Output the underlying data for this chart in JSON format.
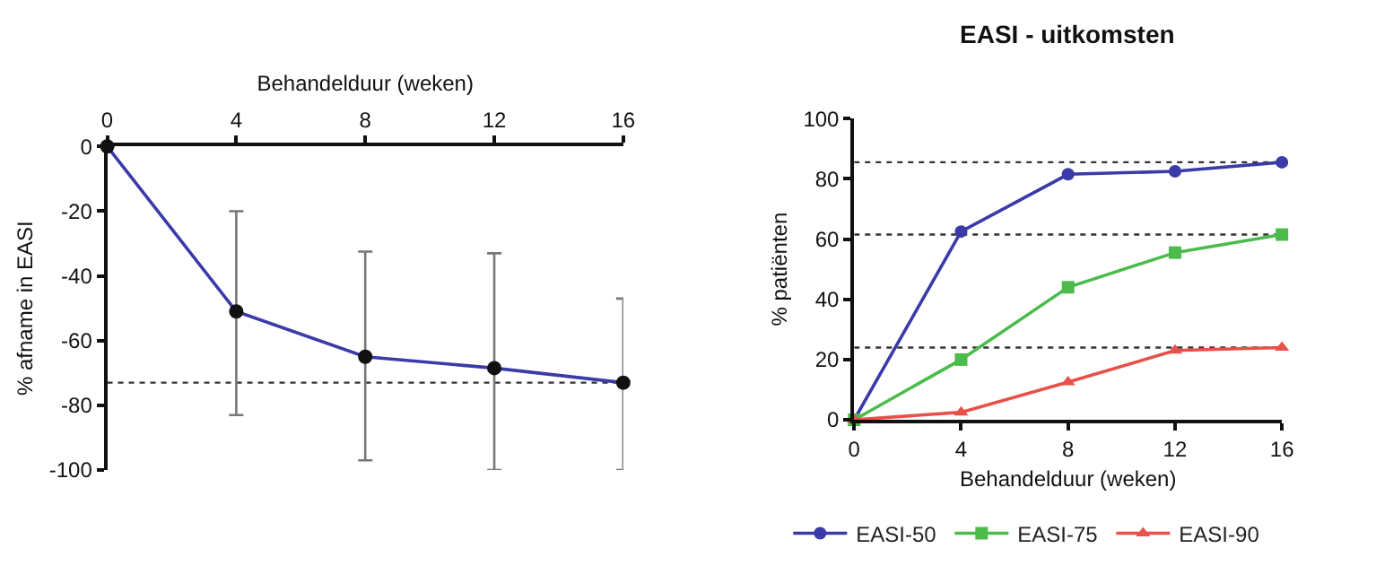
{
  "chart_data": [
    {
      "type": "line",
      "x2label": "Behandelduur (weken)",
      "ylabel": "% afname in EASI",
      "x": [
        0,
        4,
        8,
        12,
        16
      ],
      "series": [
        {
          "color": "#3a3aa8",
          "values": [
            0,
            -51,
            -65,
            -68.5,
            -73
          ],
          "errors": [
            null,
            [
              -83,
              -20
            ],
            [
              -97,
              -32.5
            ],
            [
              -100,
              -33
            ],
            [
              -100,
              -47
            ]
          ]
        }
      ],
      "marker": "circle",
      "xlim": [
        0,
        16
      ],
      "xticks": [
        0,
        4,
        8,
        12,
        16
      ],
      "ylim": [
        -100,
        0
      ],
      "yticks": [
        0,
        -20,
        -40,
        -60,
        -80,
        -100
      ],
      "ref_lines": [
        {
          "axis": "y",
          "value": -73,
          "line_style": "dotted",
          "color": "#333333"
        }
      ]
    },
    {
      "type": "line",
      "title": "EASI - uitkomsten",
      "xlabel": "Behandelduur (weken)",
      "ylabel": "% patiënten",
      "x": [
        0,
        4,
        8,
        12,
        16
      ],
      "series": [
        {
          "name": "EASI-50",
          "color": "#3a3aa8",
          "marker": "circle",
          "values": [
            0,
            62.5,
            81.5,
            82.5,
            85.5
          ]
        },
        {
          "name": "EASI-75",
          "color": "#4cbb4c",
          "marker": "square",
          "values": [
            0,
            20,
            44,
            55.5,
            61.5
          ]
        },
        {
          "name": "EASI-90",
          "color": "#e8504a",
          "marker": "triangle",
          "values": [
            0,
            2.5,
            12.5,
            23,
            24
          ]
        }
      ],
      "xlim": [
        0,
        16
      ],
      "xticks": [
        0,
        4,
        8,
        12,
        16
      ],
      "ylim": [
        0,
        100
      ],
      "yticks": [
        0,
        20,
        40,
        60,
        80,
        100
      ],
      "ref_lines": [
        {
          "axis": "y",
          "value": 85.5,
          "line_style": "dotted",
          "color": "#333333"
        },
        {
          "axis": "y",
          "value": 61.5,
          "line_style": "dotted",
          "color": "#333333"
        },
        {
          "axis": "y",
          "value": 24,
          "line_style": "dotted",
          "color": "#333333"
        }
      ],
      "legend": "bottom"
    }
  ]
}
